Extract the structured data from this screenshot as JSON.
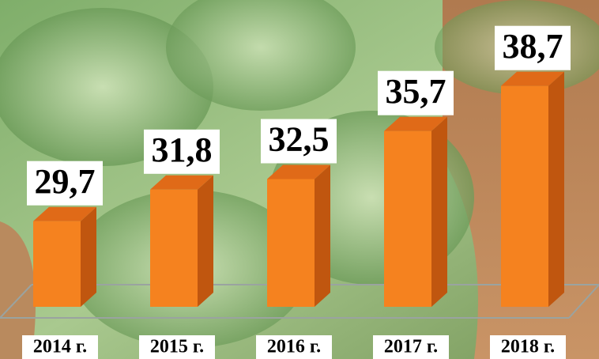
{
  "chart_data": {
    "type": "bar3d",
    "categories": [
      "2014 г.",
      "2015 г.",
      "2016 г.",
      "2017 г.",
      "2018 г."
    ],
    "values": [
      29.7,
      31.8,
      32.5,
      35.7,
      38.7
    ],
    "value_labels": [
      "29,7",
      "31,8",
      "32,5",
      "35,7",
      "38,7"
    ],
    "color": "#f5821f",
    "ylim": [
      24,
      40
    ]
  }
}
